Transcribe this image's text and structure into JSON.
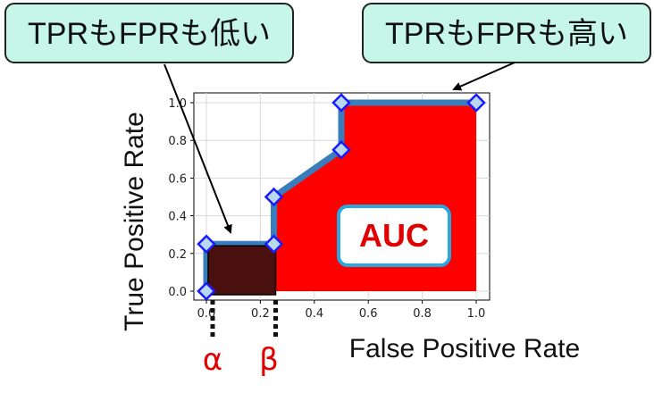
{
  "chart_data": {
    "type": "area",
    "x": [
      0.0,
      0.0,
      0.25,
      0.25,
      0.5,
      0.5,
      1.0
    ],
    "y": [
      0.0,
      0.25,
      0.25,
      0.5,
      0.75,
      1.0,
      1.0
    ],
    "xlabel": "False Positive Rate",
    "ylabel": "True Positive Rate",
    "xlim": [
      -0.04,
      1.04
    ],
    "ylim": [
      -0.05,
      1.05
    ],
    "xticks": [
      "0.0",
      "0.2",
      "0.4",
      "0.6",
      "0.8",
      "1.0"
    ],
    "yticks": [
      "0.0",
      "0.2",
      "0.4",
      "0.6",
      "0.8",
      "1.0"
    ],
    "grid": true,
    "shaded_region": {
      "x": [
        0.25,
        1.0
      ],
      "label": "AUC"
    },
    "highlight_box": {
      "x": [
        0.0,
        0.25
      ],
      "y": [
        0.0,
        0.25
      ]
    },
    "markers": {
      "alpha": {
        "label": "α",
        "x": 0.0
      },
      "beta": {
        "label": "β",
        "x": 0.25
      }
    },
    "annotations": {
      "low": "TPRもFPRも低い",
      "high": "TPRもFPRも高い",
      "auc": "AUC"
    },
    "colors": {
      "curve": "#3a7dbd",
      "fill": "#ff0000",
      "box": "#4a1010",
      "marker_fill": "#b8d8ee",
      "marker_edge": "#1a1aff",
      "callout_bg": "#c6f6e8",
      "auc_border": "#29a8e0",
      "greek": "#e00000"
    }
  }
}
